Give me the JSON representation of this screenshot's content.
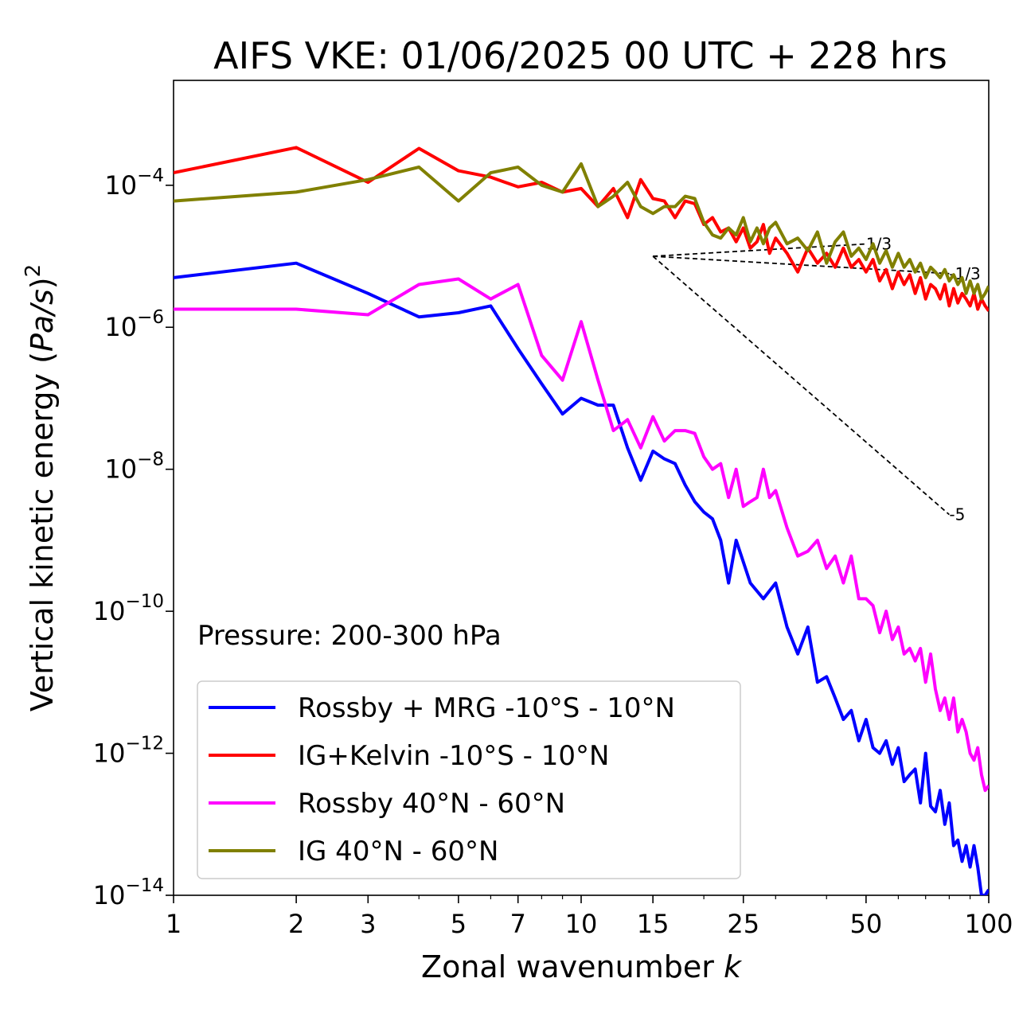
{
  "chart_data": {
    "type": "line",
    "title": "AIFS VKE: 01/06/2025 00 UTC + 228 hrs",
    "xlabel_text": "Zonal wavenumber ",
    "xlabel_var": "k",
    "ylabel_text": "Vertical kinetic energy (",
    "ylabel_var": "Pa/s",
    "ylabel_close": ")",
    "ylabel_exp": "2",
    "xscale": "log",
    "yscale": "log",
    "xlim": [
      1,
      100
    ],
    "ylim": [
      1e-14,
      0.003
    ],
    "x_ticks": [
      {
        "value": 1,
        "label": "1"
      },
      {
        "value": 2,
        "label": "2"
      },
      {
        "value": 3,
        "label": "3"
      },
      {
        "value": 5,
        "label": "5"
      },
      {
        "value": 7,
        "label": "7"
      },
      {
        "value": 10,
        "label": "10"
      },
      {
        "value": 15,
        "label": "15"
      },
      {
        "value": 25,
        "label": "25"
      },
      {
        "value": 50,
        "label": "50"
      },
      {
        "value": 100,
        "label": "100"
      }
    ],
    "y_ticks": [
      {
        "value": 1e-14,
        "base": "10",
        "exp": "−14"
      },
      {
        "value": 1e-12,
        "base": "10",
        "exp": "−12"
      },
      {
        "value": 1e-10,
        "base": "10",
        "exp": "−10"
      },
      {
        "value": 1e-08,
        "base": "10",
        "exp": "−8"
      },
      {
        "value": 1e-06,
        "base": "10",
        "exp": "−6"
      },
      {
        "value": 0.0001,
        "base": "10",
        "exp": "−4"
      }
    ],
    "annotation": "Pressure: 200-300 hPa",
    "legend_position": "lower-left",
    "series": [
      {
        "name": "Rossby + MRG -10°S - 10°N",
        "color": "#0000ff",
        "points": [
          [
            1,
            5e-06
          ],
          [
            2,
            8e-06
          ],
          [
            3,
            3e-06
          ],
          [
            4,
            1.4e-06
          ],
          [
            5,
            1.6e-06
          ],
          [
            6,
            2e-06
          ],
          [
            7,
            5e-07
          ],
          [
            8,
            1.6e-07
          ],
          [
            9,
            6e-08
          ],
          [
            10,
            1e-07
          ],
          [
            11,
            8e-08
          ],
          [
            12,
            8e-08
          ],
          [
            13,
            2e-08
          ],
          [
            14,
            7e-09
          ],
          [
            15,
            1.8e-08
          ],
          [
            16,
            1.4e-08
          ],
          [
            17,
            1.2e-08
          ],
          [
            18,
            6e-09
          ],
          [
            19,
            3.5e-09
          ],
          [
            20,
            2.5e-09
          ],
          [
            21,
            2e-09
          ],
          [
            22,
            1e-09
          ],
          [
            23,
            2.5e-10
          ],
          [
            24,
            1e-09
          ],
          [
            26,
            2.5e-10
          ],
          [
            28,
            1.5e-10
          ],
          [
            30,
            2.5e-10
          ],
          [
            32,
            6e-11
          ],
          [
            34,
            2.5e-11
          ],
          [
            36,
            6e-11
          ],
          [
            38,
            1e-11
          ],
          [
            40,
            1.2e-11
          ],
          [
            42,
            6e-12
          ],
          [
            44,
            3e-12
          ],
          [
            46,
            4e-12
          ],
          [
            48,
            1.5e-12
          ],
          [
            50,
            3e-12
          ],
          [
            52,
            1.2e-12
          ],
          [
            54,
            1e-12
          ],
          [
            56,
            1.5e-12
          ],
          [
            58,
            7e-13
          ],
          [
            60,
            1.2e-12
          ],
          [
            62,
            4e-13
          ],
          [
            64,
            5e-13
          ],
          [
            66,
            6e-13
          ],
          [
            68,
            2e-13
          ],
          [
            70,
            1e-12
          ],
          [
            72,
            1.8e-13
          ],
          [
            74,
            1.5e-13
          ],
          [
            76,
            3e-13
          ],
          [
            78,
            1e-13
          ],
          [
            80,
            2e-13
          ],
          [
            82,
            5e-14
          ],
          [
            84,
            6e-14
          ],
          [
            86,
            3e-14
          ],
          [
            88,
            5e-14
          ],
          [
            90,
            2.5e-14
          ],
          [
            92,
            5e-14
          ],
          [
            94,
            2.5e-14
          ],
          [
            96,
            1e-14
          ],
          [
            98,
            1e-14
          ],
          [
            100,
            1.2e-14
          ]
        ]
      },
      {
        "name": "IG+Kelvin -10°S - 10°N",
        "color": "#ff0000",
        "points": [
          [
            1,
            0.00015
          ],
          [
            2,
            0.00034
          ],
          [
            3,
            0.00011
          ],
          [
            4,
            0.00033
          ],
          [
            5,
            0.00016
          ],
          [
            6,
            0.00013
          ],
          [
            7,
            9.5e-05
          ],
          [
            8,
            0.00011
          ],
          [
            9,
            8e-05
          ],
          [
            10,
            9e-05
          ],
          [
            11,
            5e-05
          ],
          [
            12,
            9e-05
          ],
          [
            13,
            3.5e-05
          ],
          [
            14,
            0.00012
          ],
          [
            15,
            6.5e-05
          ],
          [
            16,
            6e-05
          ],
          [
            17,
            3.5e-05
          ],
          [
            18,
            6e-05
          ],
          [
            19,
            5.5e-05
          ],
          [
            20,
            2.8e-05
          ],
          [
            21,
            3.5e-05
          ],
          [
            22,
            2.2e-05
          ],
          [
            23,
            2.5e-05
          ],
          [
            24,
            1.6e-05
          ],
          [
            25,
            2.5e-05
          ],
          [
            26,
            1.3e-05
          ],
          [
            27,
            1.6e-05
          ],
          [
            28,
            2.8e-05
          ],
          [
            29,
            1.1e-05
          ],
          [
            30,
            1.8e-05
          ],
          [
            32,
            1.1e-05
          ],
          [
            34,
            6e-06
          ],
          [
            36,
            1.3e-05
          ],
          [
            38,
            8e-06
          ],
          [
            40,
            1.1e-05
          ],
          [
            42,
            7e-06
          ],
          [
            44,
            1.3e-05
          ],
          [
            46,
            7e-06
          ],
          [
            48,
            9e-06
          ],
          [
            50,
            6e-06
          ],
          [
            52,
            9e-06
          ],
          [
            54,
            4.5e-06
          ],
          [
            56,
            6.5e-06
          ],
          [
            58,
            3.5e-06
          ],
          [
            60,
            6e-06
          ],
          [
            62,
            4e-06
          ],
          [
            64,
            5.5e-06
          ],
          [
            66,
            3e-06
          ],
          [
            68,
            5e-06
          ],
          [
            70,
            2.5e-06
          ],
          [
            72,
            4e-06
          ],
          [
            74,
            3.5e-06
          ],
          [
            76,
            2.5e-06
          ],
          [
            78,
            4e-06
          ],
          [
            80,
            2e-06
          ],
          [
            82,
            3.5e-06
          ],
          [
            84,
            2.2e-06
          ],
          [
            86,
            3e-06
          ],
          [
            88,
            2.5e-06
          ],
          [
            90,
            2e-06
          ],
          [
            92,
            3e-06
          ],
          [
            94,
            1.8e-06
          ],
          [
            96,
            2.5e-06
          ],
          [
            98,
            2e-06
          ],
          [
            100,
            1.7e-06
          ]
        ]
      },
      {
        "name": "Rossby 40°N - 60°N",
        "color": "#ff00ff",
        "points": [
          [
            1,
            1.8e-06
          ],
          [
            2,
            1.8e-06
          ],
          [
            3,
            1.5e-06
          ],
          [
            4,
            4e-06
          ],
          [
            5,
            4.8e-06
          ],
          [
            6,
            2.5e-06
          ],
          [
            7,
            4e-06
          ],
          [
            8,
            4e-07
          ],
          [
            9,
            1.8e-07
          ],
          [
            10,
            1.2e-06
          ],
          [
            11,
            1.8e-07
          ],
          [
            12,
            3.5e-08
          ],
          [
            13,
            5e-08
          ],
          [
            14,
            2e-08
          ],
          [
            15,
            5.5e-08
          ],
          [
            16,
            2.5e-08
          ],
          [
            17,
            3.5e-08
          ],
          [
            18,
            3.5e-08
          ],
          [
            19,
            3.2e-08
          ],
          [
            20,
            1.5e-08
          ],
          [
            21,
            1e-08
          ],
          [
            22,
            1.2e-08
          ],
          [
            23,
            4e-09
          ],
          [
            24,
            1e-08
          ],
          [
            25,
            3e-09
          ],
          [
            26,
            3.5e-09
          ],
          [
            27,
            4e-09
          ],
          [
            28,
            1e-08
          ],
          [
            29,
            4e-09
          ],
          [
            30,
            5e-09
          ],
          [
            32,
            1.5e-09
          ],
          [
            34,
            6e-10
          ],
          [
            36,
            7e-10
          ],
          [
            38,
            1e-09
          ],
          [
            40,
            4e-10
          ],
          [
            42,
            6e-10
          ],
          [
            44,
            2.5e-10
          ],
          [
            46,
            6e-10
          ],
          [
            48,
            1.5e-10
          ],
          [
            50,
            1.5e-10
          ],
          [
            52,
            1.2e-10
          ],
          [
            54,
            5e-11
          ],
          [
            56,
            1e-10
          ],
          [
            58,
            4e-11
          ],
          [
            60,
            6e-11
          ],
          [
            62,
            2.5e-11
          ],
          [
            64,
            3e-11
          ],
          [
            66,
            2e-11
          ],
          [
            68,
            3e-11
          ],
          [
            70,
            1e-11
          ],
          [
            72,
            2.5e-11
          ],
          [
            74,
            8e-12
          ],
          [
            76,
            4e-12
          ],
          [
            78,
            6e-12
          ],
          [
            80,
            3e-12
          ],
          [
            82,
            6e-12
          ],
          [
            84,
            2e-12
          ],
          [
            86,
            3e-12
          ],
          [
            88,
            2e-12
          ],
          [
            90,
            1e-12
          ],
          [
            92,
            8e-13
          ],
          [
            94,
            1.2e-12
          ],
          [
            96,
            5e-13
          ],
          [
            98,
            3e-13
          ],
          [
            100,
            3.5e-13
          ]
        ]
      },
      {
        "name": "IG 40°N - 60°N",
        "color": "#808000",
        "points": [
          [
            1,
            6e-05
          ],
          [
            2,
            8e-05
          ],
          [
            3,
            0.00012
          ],
          [
            4,
            0.00018
          ],
          [
            5,
            6e-05
          ],
          [
            6,
            0.00015
          ],
          [
            7,
            0.00018
          ],
          [
            8,
            0.0001
          ],
          [
            9,
            8e-05
          ],
          [
            10,
            0.0002
          ],
          [
            11,
            5e-05
          ],
          [
            12,
            7e-05
          ],
          [
            13,
            0.00011
          ],
          [
            14,
            5e-05
          ],
          [
            15,
            4e-05
          ],
          [
            16,
            5e-05
          ],
          [
            17,
            5e-05
          ],
          [
            18,
            7e-05
          ],
          [
            19,
            6.5e-05
          ],
          [
            20,
            3e-05
          ],
          [
            21,
            2e-05
          ],
          [
            22,
            1.8e-05
          ],
          [
            23,
            2.5e-05
          ],
          [
            24,
            2e-05
          ],
          [
            25,
            3.5e-05
          ],
          [
            26,
            1.6e-05
          ],
          [
            27,
            2.5e-05
          ],
          [
            28,
            1.5e-05
          ],
          [
            29,
            2.5e-05
          ],
          [
            30,
            3e-05
          ],
          [
            32,
            1.5e-05
          ],
          [
            34,
            1.8e-05
          ],
          [
            36,
            1.2e-05
          ],
          [
            38,
            2.2e-05
          ],
          [
            40,
            8e-06
          ],
          [
            42,
            1.6e-05
          ],
          [
            44,
            2.2e-05
          ],
          [
            46,
            1e-05
          ],
          [
            48,
            1.3e-05
          ],
          [
            50,
            9e-06
          ],
          [
            52,
            1.5e-05
          ],
          [
            54,
            8e-06
          ],
          [
            56,
            1.2e-05
          ],
          [
            58,
            7e-06
          ],
          [
            60,
            1.1e-05
          ],
          [
            62,
            7e-06
          ],
          [
            64,
            9e-06
          ],
          [
            66,
            6e-06
          ],
          [
            68,
            8e-06
          ],
          [
            70,
            5e-06
          ],
          [
            72,
            7e-06
          ],
          [
            74,
            6e-06
          ],
          [
            76,
            5e-06
          ],
          [
            78,
            6.5e-06
          ],
          [
            80,
            4.5e-06
          ],
          [
            82,
            5.5e-06
          ],
          [
            84,
            4e-06
          ],
          [
            86,
            5e-06
          ],
          [
            88,
            3e-06
          ],
          [
            90,
            4.5e-06
          ],
          [
            92,
            3e-06
          ],
          [
            94,
            4e-06
          ],
          [
            96,
            2.5e-06
          ],
          [
            98,
            3e-06
          ],
          [
            100,
            3.8e-06
          ]
        ]
      }
    ],
    "reference_lines": [
      {
        "label": "1/3",
        "points": [
          [
            15,
            1e-05
          ],
          [
            50,
            1.49e-05
          ]
        ]
      },
      {
        "label": "-1/3",
        "points": [
          [
            15,
            1e-05
          ],
          [
            80,
            5.7e-06
          ]
        ]
      },
      {
        "label": "-5",
        "points": [
          [
            15,
            1e-05
          ],
          [
            80,
            2.3e-09
          ]
        ]
      }
    ]
  }
}
